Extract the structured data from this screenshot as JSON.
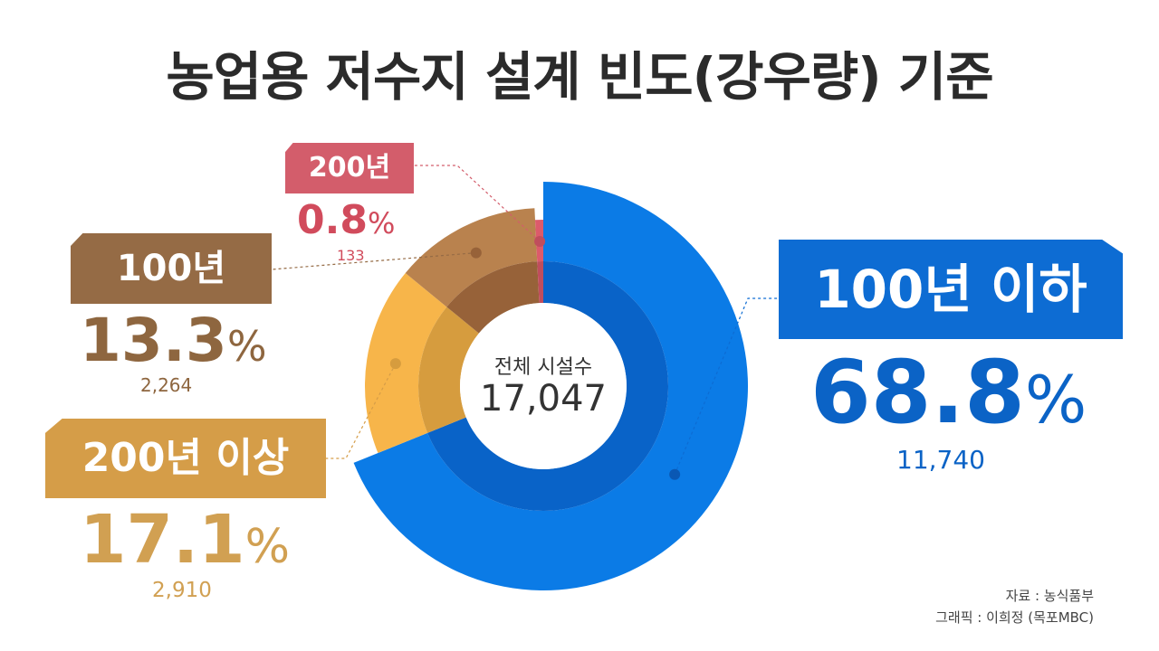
{
  "title": "농업용 저수지 설계 빈도(강우량) 기준",
  "center": {
    "label": "전체 시설수",
    "value": "17,047"
  },
  "source": {
    "data": "자료 : 농식품부",
    "graphic": "그래픽 : 이희정 (목포MBC)"
  },
  "chart_data": {
    "type": "pie",
    "title": "농업용 저수지 설계 빈도(강우량) 기준",
    "total": 17047,
    "categories": [
      "100년 이하",
      "200년 이상",
      "100년",
      "200년"
    ],
    "values": [
      11740,
      2910,
      2264,
      133
    ],
    "percents": [
      68.8,
      17.1,
      13.3,
      0.8
    ],
    "colors": [
      "#0b7be6",
      "#f7b54a",
      "#b9824e",
      "#dc5a6b"
    ],
    "inner_colors": [
      "#0963c8",
      "#d69c3e",
      "#976239",
      "#c04d5d"
    ],
    "labels": [
      {
        "name": "100년 이하",
        "pct": "68.8",
        "unit": "%",
        "count": "11,740",
        "tag_color": "#0d6cd3",
        "text_color": "#0b63c6"
      },
      {
        "name": "200년 이상",
        "pct": "17.1",
        "unit": "%",
        "count": "2,910",
        "tag_color": "#d59d48",
        "text_color": "#d1a052"
      },
      {
        "name": "100년",
        "pct": "13.3",
        "unit": "%",
        "count": "2,264",
        "tag_color": "#956b45",
        "text_color": "#8e663f"
      },
      {
        "name": "200년",
        "pct": "0.8",
        "unit": "%",
        "count": "133",
        "tag_color": "#d35d6b",
        "text_color": "#d14b5c"
      }
    ]
  }
}
